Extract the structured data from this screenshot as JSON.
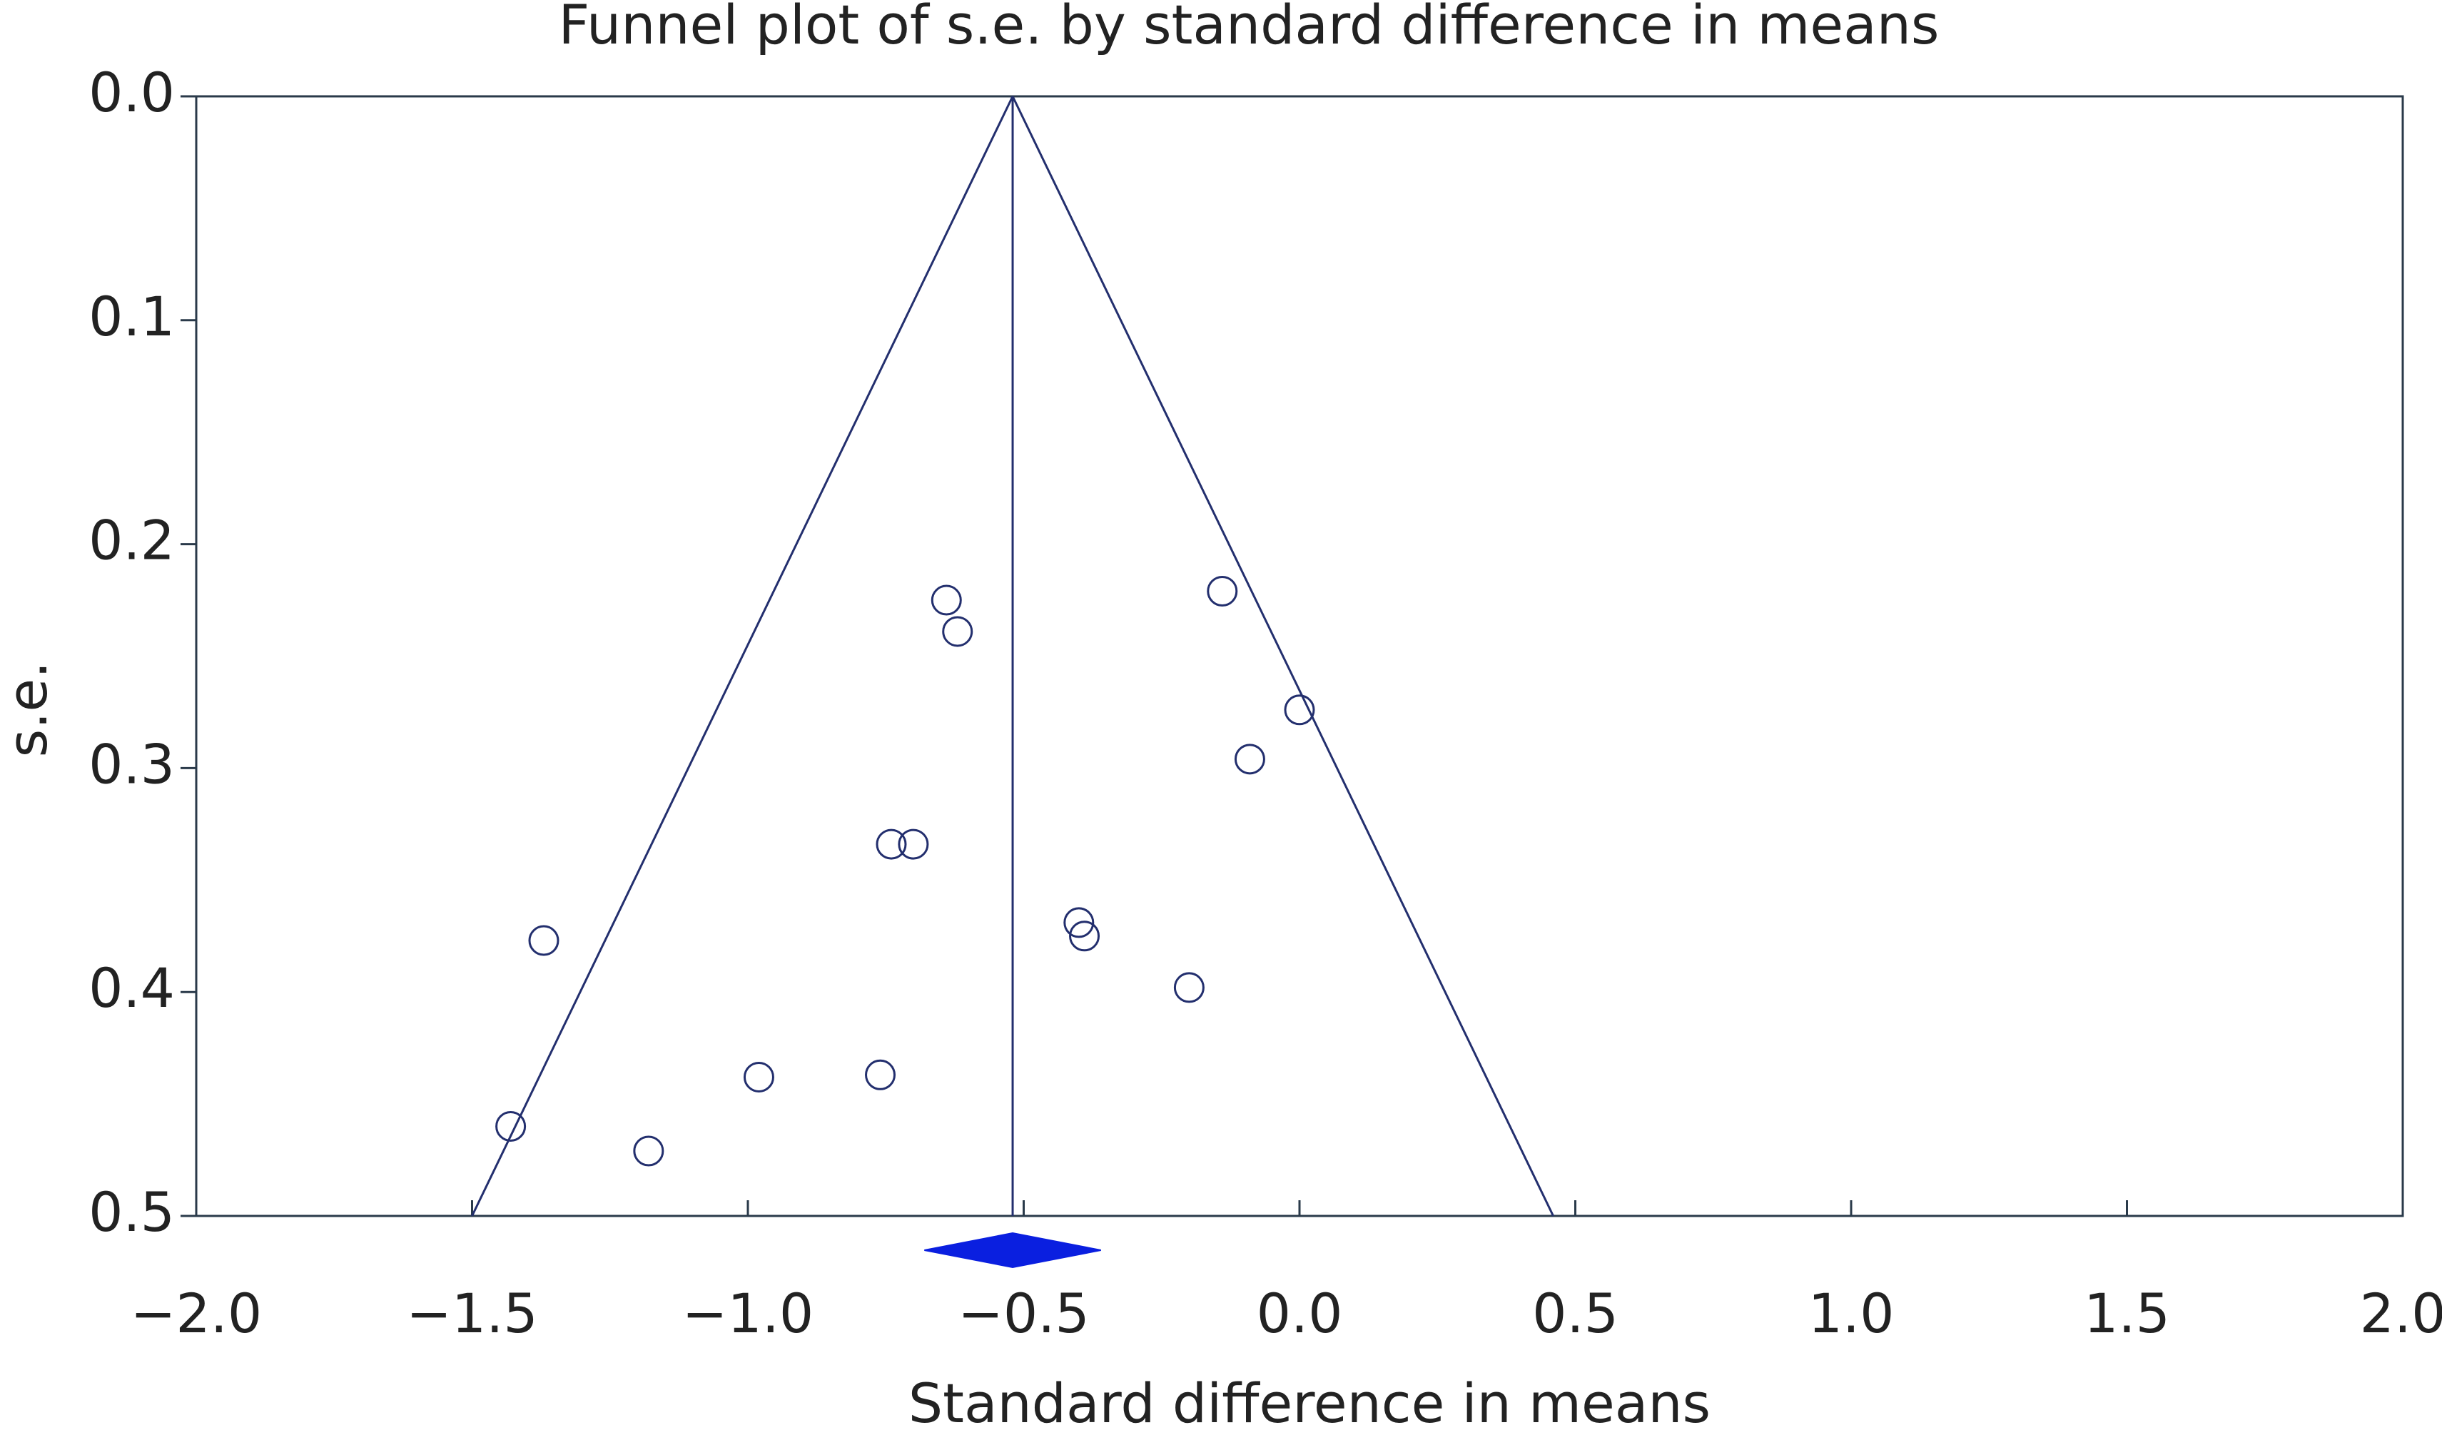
{
  "chart_data": {
    "type": "funnel",
    "title": "Funnel plot of s.e. by standard difference in means",
    "x_label": "Standard difference in means",
    "y_label": "s.e.",
    "color": "#232f6e",
    "x": [
      -0.64,
      -0.62,
      -0.14,
      0.0,
      -0.09,
      -0.74,
      -0.7,
      -1.37,
      -0.4,
      -0.39,
      -0.2,
      -0.98,
      -0.76,
      -1.43,
      -1.18
    ],
    "values": [
      0.225,
      0.239,
      0.221,
      0.274,
      0.296,
      0.334,
      0.334,
      0.377,
      0.369,
      0.375,
      0.398,
      0.438,
      0.437,
      0.46,
      0.471
    ],
    "summary": {
      "estimate": -0.52,
      "ci": [
        -0.68,
        -0.36
      ],
      "color": "#0a1fe0"
    },
    "funnel": {
      "left": {
        "x": [
          -0.52,
          -1.5
        ],
        "y": [
          0.0,
          0.5
        ]
      },
      "right": {
        "x": [
          -0.52,
          0.46
        ],
        "y": [
          0.0,
          0.5
        ]
      },
      "center": {
        "x": [
          -0.52,
          -0.52
        ],
        "y": [
          0.0,
          0.5
        ]
      }
    },
    "xlim": [
      -2.0,
      2.0
    ],
    "xticks": [
      {
        "value": -2.0,
        "label": "−2.0"
      },
      {
        "value": -1.5,
        "label": "−1.5"
      },
      {
        "value": -1.0,
        "label": "−1.0"
      },
      {
        "value": -0.5,
        "label": "−0.5"
      },
      {
        "value": 0.0,
        "label": "0.0"
      },
      {
        "value": 0.5,
        "label": "0.5"
      },
      {
        "value": 1.0,
        "label": "1.0"
      },
      {
        "value": 1.5,
        "label": "1.5"
      },
      {
        "value": 2.0,
        "label": "2.0"
      }
    ],
    "ylim": [
      0.0,
      0.5
    ],
    "y_inverted": true,
    "yticks": [
      {
        "value": 0.0,
        "label": "0.0"
      },
      {
        "value": 0.1,
        "label": "0.1"
      },
      {
        "value": 0.2,
        "label": "0.2"
      },
      {
        "value": 0.3,
        "label": "0.3"
      },
      {
        "value": 0.4,
        "label": "0.4"
      },
      {
        "value": 0.5,
        "label": "0.5"
      }
    ]
  }
}
